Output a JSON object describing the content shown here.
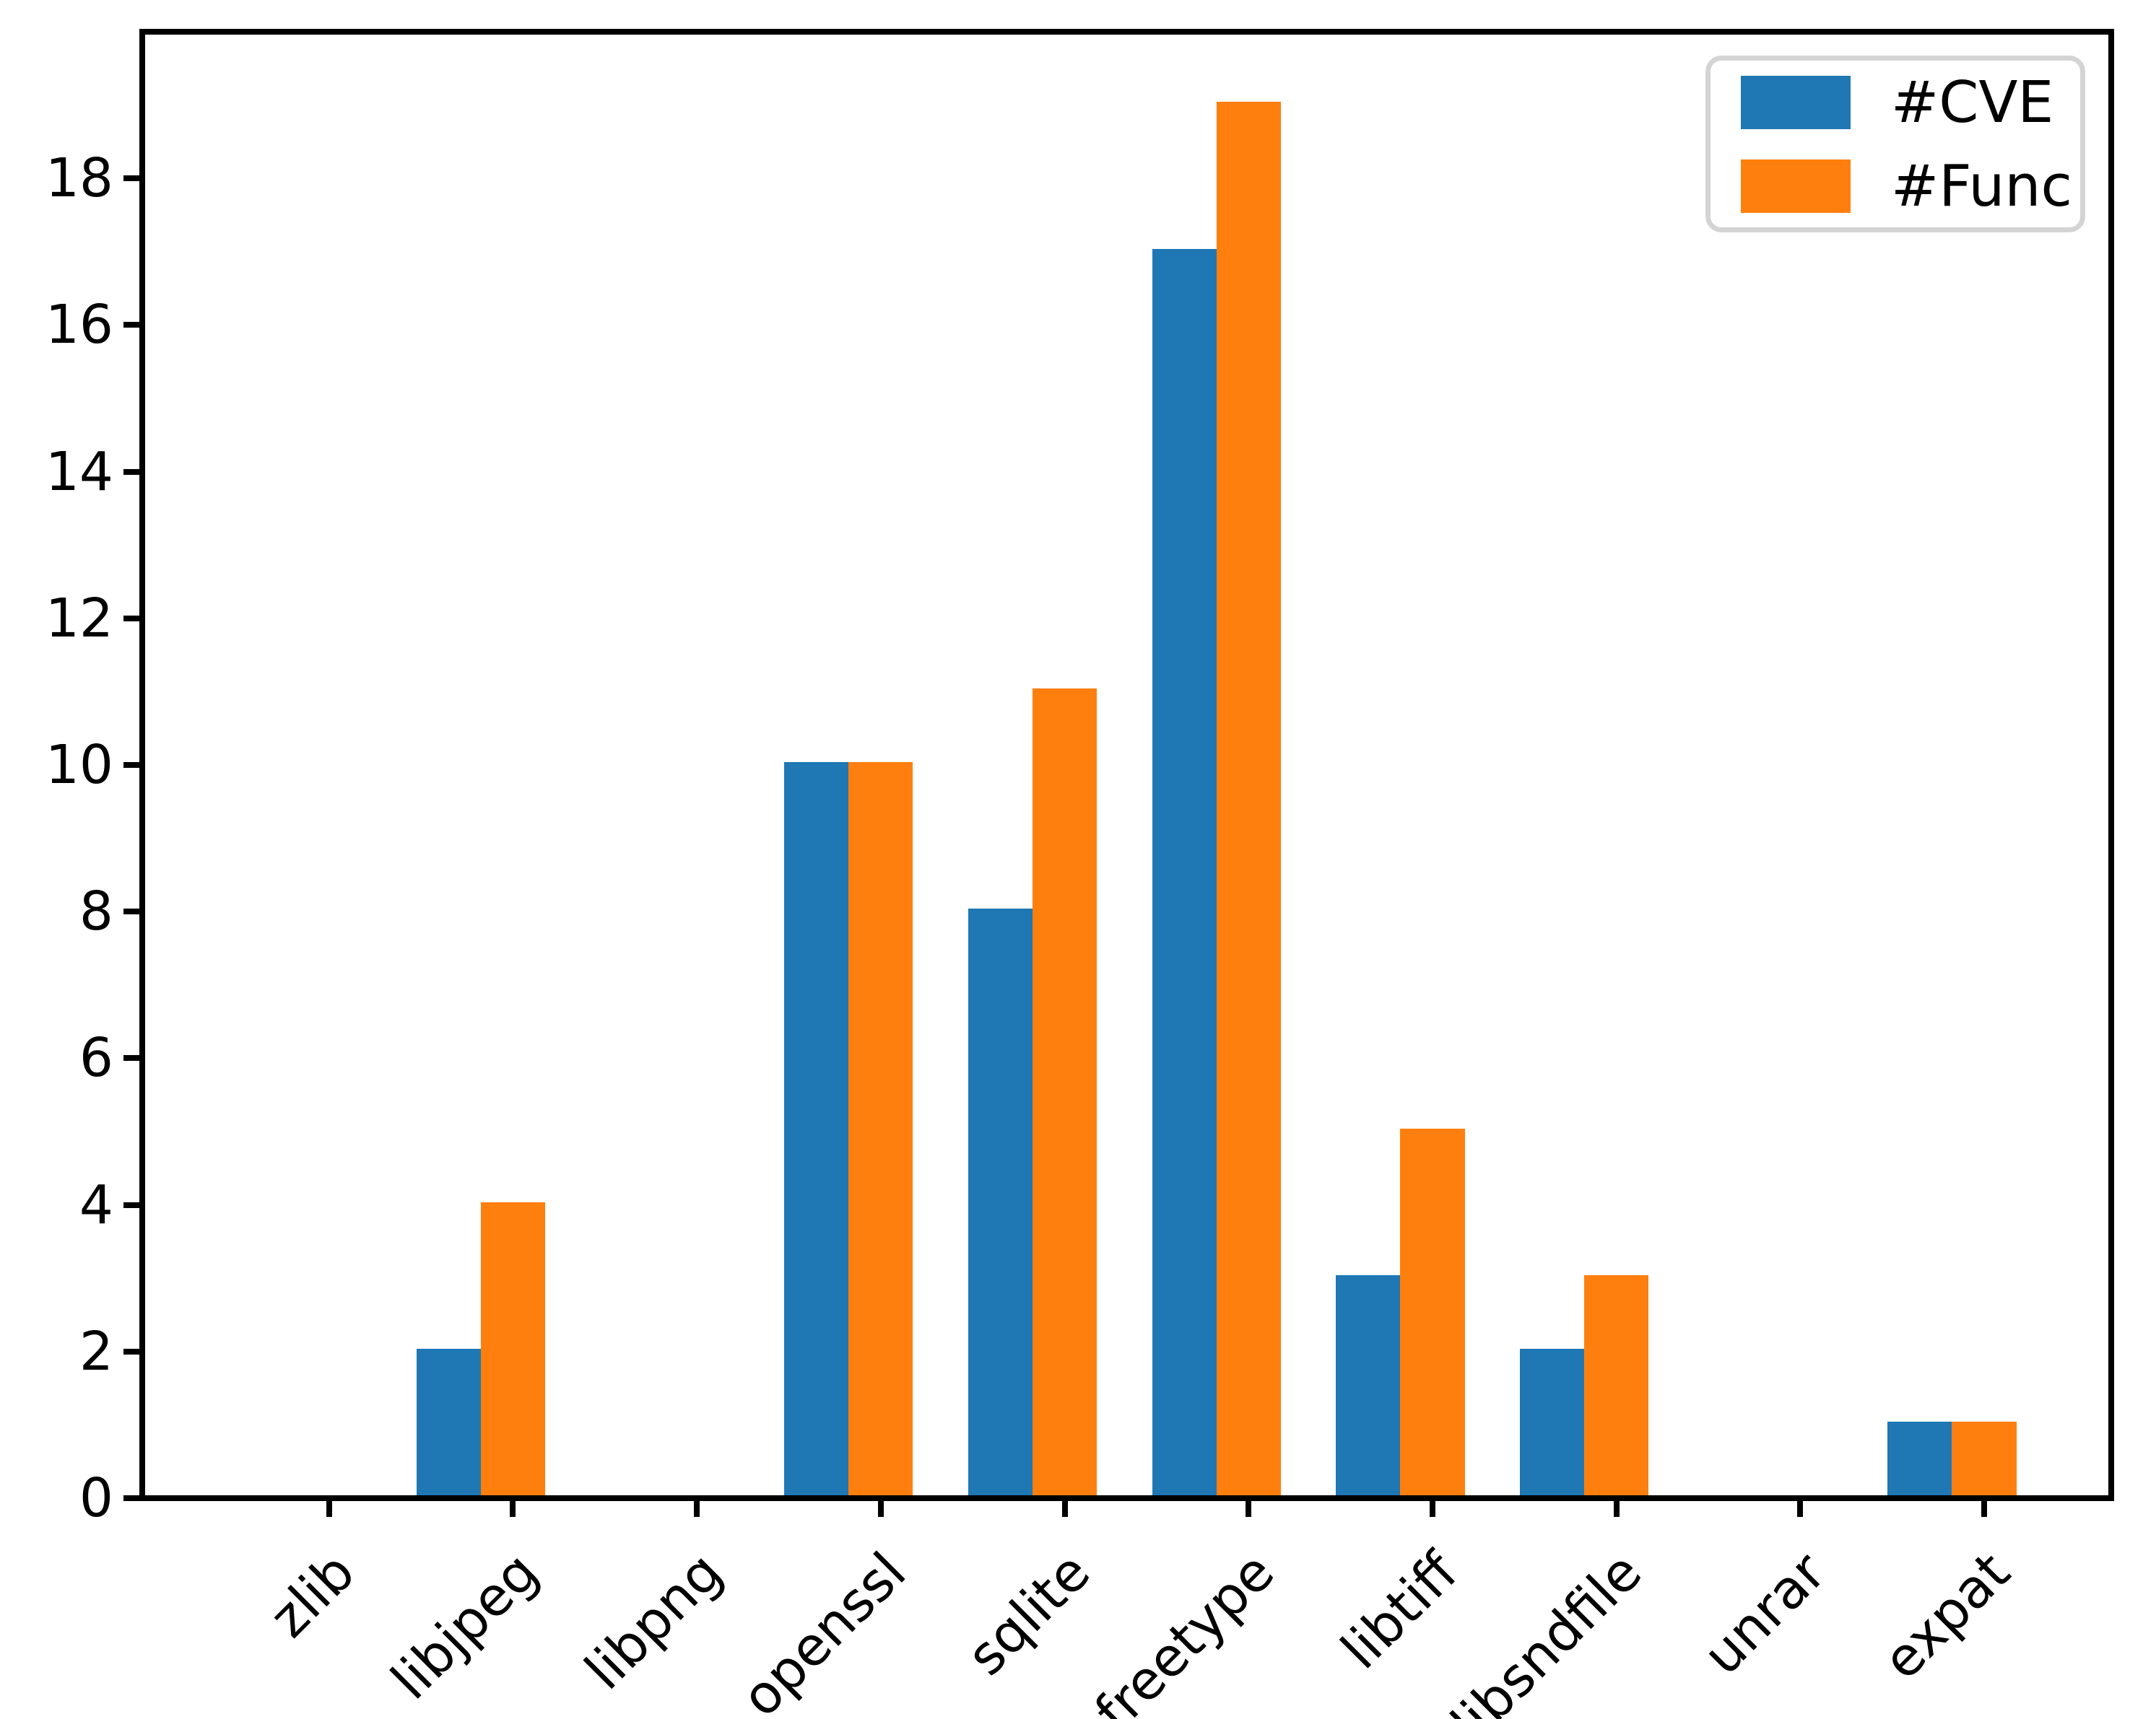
{
  "figure": {
    "background": "#ffffff",
    "title": ""
  },
  "legend": {
    "position": "upper right",
    "items": [
      {
        "label": "#CVE",
        "color": "#1f77b4"
      },
      {
        "label": "#Func",
        "color": "#ff7f0e"
      }
    ]
  },
  "chart_data": {
    "type": "bar",
    "title": "",
    "xlabel": "",
    "ylabel": "",
    "categories": [
      "zlib",
      "libjpeg",
      "libpng",
      "openssl",
      "sqlite",
      "freetype",
      "libtiff",
      "libsndfile",
      "unrar",
      "expat"
    ],
    "series": [
      {
        "name": "#CVE",
        "color": "#1f77b4",
        "values": [
          0,
          2,
          0,
          10,
          8,
          17,
          3,
          2,
          0,
          1
        ]
      },
      {
        "name": "#Func",
        "color": "#ff7f0e",
        "values": [
          0,
          4,
          0,
          10,
          11,
          19,
          5,
          3,
          0,
          1
        ]
      }
    ],
    "yticks": [
      0,
      2,
      4,
      6,
      8,
      10,
      12,
      14,
      16,
      18
    ],
    "ylim": [
      0,
      19.92
    ],
    "xlim": [
      -1.0,
      9.675
    ],
    "bar_width_units": 0.35,
    "series_offsets_units": [
      -0.35,
      0
    ],
    "xtick_rotation_deg": 45,
    "grid": false,
    "axis_color": "#000000"
  }
}
